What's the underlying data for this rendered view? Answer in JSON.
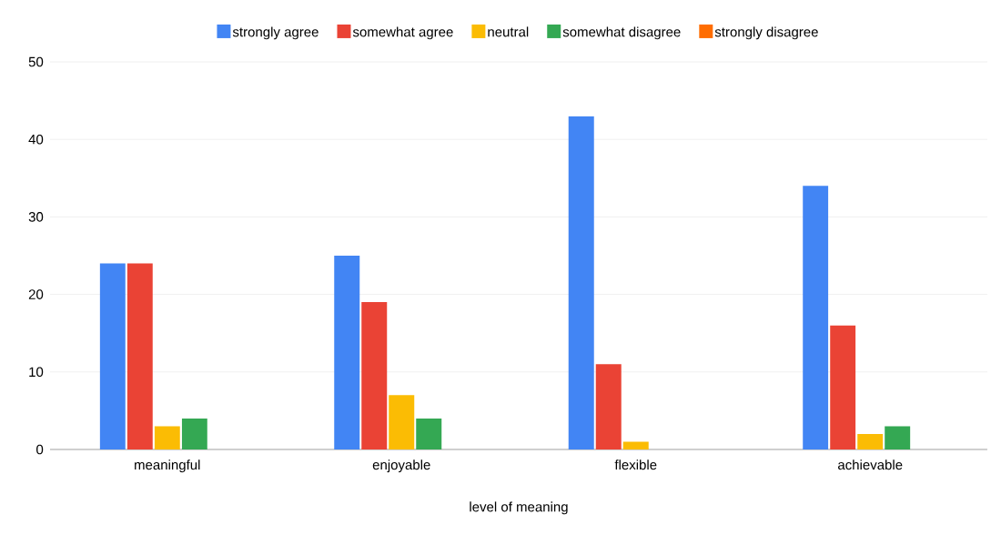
{
  "chart_data": {
    "type": "bar",
    "xlabel": "level of meaning",
    "categories": [
      "meaningful",
      "enjoyable",
      "flexible",
      "achievable"
    ],
    "series": [
      {
        "name": "strongly agree",
        "color": "#4285f4",
        "values": [
          24,
          25,
          43,
          34
        ]
      },
      {
        "name": "somewhat agree",
        "color": "#ea4335",
        "values": [
          24,
          19,
          11,
          16
        ]
      },
      {
        "name": "neutral",
        "color": "#fbbc04",
        "values": [
          3,
          7,
          1,
          2
        ]
      },
      {
        "name": "somewhat disagree",
        "color": "#34a853",
        "values": [
          4,
          4,
          0,
          3
        ]
      },
      {
        "name": "strongly disagree",
        "color": "#ff6d01",
        "values": [
          0,
          0,
          0,
          0
        ]
      }
    ],
    "ylim": [
      0,
      50
    ],
    "yticks": [
      0,
      10,
      20,
      30,
      40,
      50
    ],
    "grid": "y",
    "legend": "top"
  }
}
